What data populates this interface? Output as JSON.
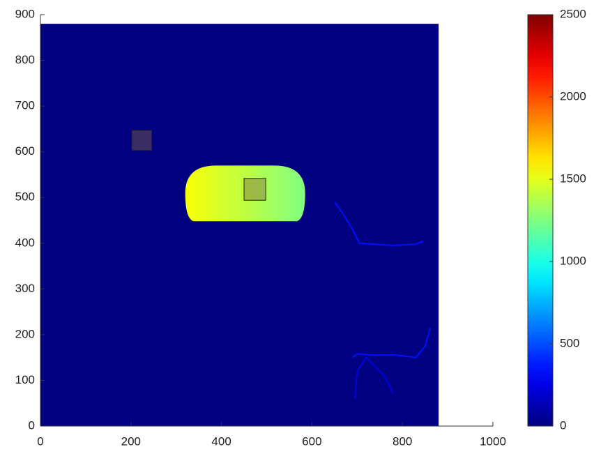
{
  "chart_data": {
    "type": "heatmap",
    "colormap": "jet",
    "xlim": [
      0,
      1000
    ],
    "xticks": [
      0,
      200,
      400,
      600,
      800,
      1000
    ],
    "ylim": [
      0,
      900
    ],
    "yticks": [
      0,
      100,
      200,
      300,
      400,
      500,
      600,
      700,
      800,
      900
    ],
    "clim": [
      0,
      2500
    ],
    "cticks": [
      0,
      500,
      1000,
      1500,
      2000,
      2500
    ],
    "image_extent": {
      "x": [
        0,
        880
      ],
      "y": [
        0,
        880
      ],
      "value": 0
    },
    "regions": [
      {
        "x": [
          320,
          585
        ],
        "y": [
          448,
          570
        ],
        "values": [
          1550,
          1250
        ]
      }
    ],
    "traces": [
      {
        "x": [
          650,
          665,
          690,
          705,
          780,
          830,
          845,
          840
        ],
        "y": [
          490,
          470,
          430,
          400,
          395,
          398,
          405,
          400
        ],
        "value": 350
      },
      {
        "x": [
          690,
          700,
          740,
          780,
          830,
          850,
          862
        ],
        "y": [
          150,
          158,
          155,
          156,
          150,
          175,
          215
        ],
        "value": 350
      },
      {
        "x": [
          695,
          700,
          720,
          760,
          780
        ],
        "y": [
          60,
          120,
          150,
          110,
          70
        ],
        "value": 250
      }
    ],
    "boxes": [
      {
        "x": [
          202,
          246
        ],
        "y": [
          603,
          647
        ]
      },
      {
        "x": [
          450,
          498
        ],
        "y": [
          494,
          542
        ]
      }
    ]
  }
}
